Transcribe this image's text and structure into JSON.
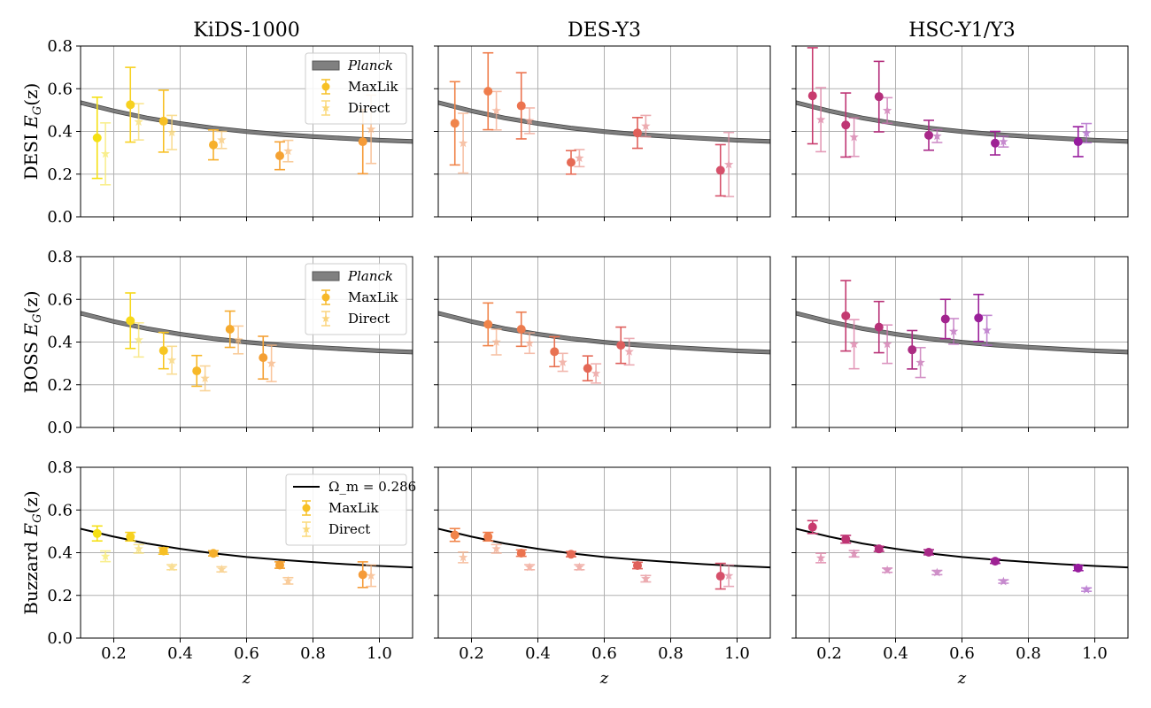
{
  "chart_data": {
    "type": "scatter",
    "layout": "3x3 grid of panels",
    "column_titles": [
      "KiDS-1000",
      "DES-Y3",
      "HSC-Y1/Y3"
    ],
    "row_labels": [
      "DESI E_G(z)",
      "BOSS E_G(z)",
      "Buzzard E_G(z)"
    ],
    "row_label_parts": [
      {
        "prefix": "DESI",
        "sym": "E",
        "sub": "G",
        "suffix": "(z)"
      },
      {
        "prefix": "BOSS",
        "sym": "E",
        "sub": "G",
        "suffix": "(z)"
      },
      {
        "prefix": "Buzzard",
        "sym": "E",
        "sub": "G",
        "suffix": "(z)"
      }
    ],
    "xlabel": "z",
    "xlim": [
      0.1,
      1.1
    ],
    "ylim": [
      0.0,
      0.8
    ],
    "xticks": [
      0.2,
      0.4,
      0.6,
      0.8,
      1.0
    ],
    "xtick_labels": [
      "0.2",
      "0.4",
      "0.6",
      "0.8",
      "1.0"
    ],
    "yticks": [
      0.0,
      0.2,
      0.4,
      0.6,
      0.8
    ],
    "ytick_labels": [
      "0.0",
      "0.2",
      "0.4",
      "0.6",
      "0.8"
    ],
    "grid": true,
    "legends": [
      {
        "row": 0,
        "col": 0,
        "placement": "top-right",
        "entries": [
          {
            "label": "Planck",
            "kind": "band"
          },
          {
            "label": "MaxLik",
            "kind": "circle"
          },
          {
            "label": "Direct",
            "kind": "star"
          }
        ]
      },
      {
        "row": 1,
        "col": 0,
        "placement": "top-right",
        "entries": [
          {
            "label": "Planck",
            "kind": "band"
          },
          {
            "label": "MaxLik",
            "kind": "circle"
          },
          {
            "label": "Direct",
            "kind": "star"
          }
        ]
      },
      {
        "row": 2,
        "col": 0,
        "placement": "top-right",
        "entries": [
          {
            "label": "Ω_m = 0.286",
            "kind": "line"
          },
          {
            "label": "MaxLik",
            "kind": "circle"
          },
          {
            "label": "Direct",
            "kind": "star"
          }
        ]
      }
    ],
    "models": [
      {
        "rows": [
          0,
          1
        ],
        "name": "Planck",
        "kind": "band",
        "color": "#6a6a6a",
        "x": [
          0.1,
          0.2,
          0.3,
          0.4,
          0.5,
          0.6,
          0.7,
          0.8,
          0.9,
          1.0,
          1.1
        ],
        "y": [
          0.535,
          0.496,
          0.463,
          0.437,
          0.416,
          0.399,
          0.386,
          0.376,
          0.367,
          0.359,
          0.353
        ],
        "halfwidth": 0.009
      },
      {
        "rows": [
          2
        ],
        "name": "Ω_m = 0.286",
        "kind": "line",
        "color": "#000000",
        "x": [
          0.1,
          0.2,
          0.3,
          0.4,
          0.5,
          0.6,
          0.7,
          0.8,
          0.9,
          1.0,
          1.1
        ],
        "y": [
          0.512,
          0.475,
          0.443,
          0.418,
          0.397,
          0.38,
          0.367,
          0.356,
          0.346,
          0.338,
          0.331
        ]
      }
    ],
    "panels": [
      {
        "row": 0,
        "col": 0,
        "maxlik": {
          "x": [
            0.15,
            0.25,
            0.35,
            0.5,
            0.7,
            0.95
          ],
          "y": [
            0.37,
            0.525,
            0.448,
            0.337,
            0.286,
            0.352
          ],
          "yerr": [
            0.19,
            0.175,
            0.145,
            0.07,
            0.065,
            0.15
          ],
          "colors": [
            "#f5e014",
            "#f7d11f",
            "#f7c025",
            "#f6b02c",
            "#f5a233",
            "#f59b38"
          ]
        },
        "direct": {
          "x": [
            0.175,
            0.275,
            0.375,
            0.525,
            0.725,
            0.975
          ],
          "y": [
            0.295,
            0.445,
            0.395,
            0.36,
            0.308,
            0.41
          ],
          "yerr": [
            0.145,
            0.085,
            0.08,
            0.04,
            0.05,
            0.16
          ],
          "colors": [
            "#f7ea6a",
            "#f8de6e",
            "#f8d472",
            "#f8c876",
            "#f8bc7a",
            "#f8b47e"
          ]
        }
      },
      {
        "row": 0,
        "col": 1,
        "maxlik": {
          "x": [
            0.15,
            0.25,
            0.35,
            0.5,
            0.7,
            0.95
          ],
          "y": [
            0.438,
            0.588,
            0.52,
            0.255,
            0.393,
            0.218
          ],
          "yerr": [
            0.195,
            0.18,
            0.155,
            0.055,
            0.072,
            0.12
          ],
          "colors": [
            "#f0844a",
            "#ef7d4c",
            "#ec734f",
            "#e66a55",
            "#e0605a",
            "#d6506a"
          ]
        },
        "direct": {
          "x": [
            0.175,
            0.275,
            0.375,
            0.525,
            0.725,
            0.975
          ],
          "y": [
            0.345,
            0.497,
            0.45,
            0.275,
            0.425,
            0.245
          ],
          "yerr": [
            0.14,
            0.09,
            0.06,
            0.04,
            0.05,
            0.15
          ],
          "colors": [
            "#f5b08a",
            "#f3a98c",
            "#f0a08e",
            "#ec9a92",
            "#e69096",
            "#e08aa0"
          ]
        }
      },
      {
        "row": 0,
        "col": 2,
        "maxlik": {
          "x": [
            0.15,
            0.25,
            0.35,
            0.5,
            0.7,
            0.95
          ],
          "y": [
            0.567,
            0.43,
            0.563,
            0.382,
            0.345,
            0.352
          ],
          "yerr": [
            0.225,
            0.15,
            0.165,
            0.07,
            0.055,
            0.07
          ],
          "colors": [
            "#c83b6e",
            "#bf3574",
            "#b42f7c",
            "#a82888",
            "#9e2294",
            "#961b9e"
          ]
        },
        "direct": {
          "x": [
            0.175,
            0.275,
            0.375,
            0.525,
            0.725,
            0.975
          ],
          "y": [
            0.455,
            0.373,
            0.498,
            0.378,
            0.352,
            0.392
          ],
          "yerr": [
            0.15,
            0.09,
            0.06,
            0.03,
            0.025,
            0.045
          ],
          "colors": [
            "#dc7aa0",
            "#d476a6",
            "#ca70ae",
            "#be6ab6",
            "#b464be",
            "#aa5ec6"
          ]
        }
      },
      {
        "row": 1,
        "col": 0,
        "maxlik": {
          "x": [
            0.25,
            0.35,
            0.45,
            0.55,
            0.65
          ],
          "y": [
            0.5,
            0.36,
            0.265,
            0.46,
            0.327
          ],
          "yerr": [
            0.13,
            0.085,
            0.072,
            0.085,
            0.1
          ],
          "colors": [
            "#f7d81a",
            "#f7c622",
            "#f7b828",
            "#f5aa2e",
            "#f4a034"
          ]
        },
        "direct": {
          "x": [
            0.275,
            0.375,
            0.475,
            0.575,
            0.675
          ],
          "y": [
            0.41,
            0.315,
            0.23,
            0.41,
            0.3
          ],
          "yerr": [
            0.08,
            0.065,
            0.058,
            0.065,
            0.085
          ],
          "colors": [
            "#f8e46e",
            "#f8d272",
            "#f8c676",
            "#f8bc7a",
            "#f8b47e"
          ]
        }
      },
      {
        "row": 1,
        "col": 1,
        "maxlik": {
          "x": [
            0.25,
            0.35,
            0.45,
            0.55,
            0.65
          ],
          "y": [
            0.483,
            0.46,
            0.355,
            0.277,
            0.385
          ],
          "yerr": [
            0.1,
            0.08,
            0.07,
            0.058,
            0.085
          ],
          "colors": [
            "#f0844a",
            "#ec7b4e",
            "#e87252",
            "#e46856",
            "#de5e5c"
          ]
        },
        "direct": {
          "x": [
            0.275,
            0.375,
            0.475,
            0.575,
            0.675
          ],
          "y": [
            0.4,
            0.395,
            0.305,
            0.253,
            0.355
          ],
          "yerr": [
            0.06,
            0.048,
            0.042,
            0.045,
            0.062
          ],
          "colors": [
            "#f5b08a",
            "#f2a88e",
            "#ee9f92",
            "#ea9896",
            "#e6909a"
          ]
        }
      },
      {
        "row": 1,
        "col": 2,
        "maxlik": {
          "x": [
            0.25,
            0.35,
            0.45,
            0.55,
            0.65
          ],
          "y": [
            0.523,
            0.47,
            0.364,
            0.508,
            0.513
          ],
          "yerr": [
            0.165,
            0.12,
            0.09,
            0.092,
            0.11
          ],
          "colors": [
            "#c33a70",
            "#b83278",
            "#ac2c82",
            "#a2248e",
            "#9a209a"
          ]
        },
        "direct": {
          "x": [
            0.275,
            0.375,
            0.475,
            0.575,
            0.675
          ],
          "y": [
            0.39,
            0.39,
            0.304,
            0.45,
            0.455
          ],
          "yerr": [
            0.115,
            0.09,
            0.07,
            0.06,
            0.07
          ],
          "colors": [
            "#da78a2",
            "#cf72aa",
            "#c46cb2",
            "#ba66ba",
            "#b062c2"
          ]
        }
      },
      {
        "row": 2,
        "col": 0,
        "maxlik": {
          "x": [
            0.15,
            0.25,
            0.35,
            0.5,
            0.7,
            0.95
          ],
          "y": [
            0.49,
            0.475,
            0.408,
            0.397,
            0.342,
            0.297
          ],
          "yerr": [
            0.035,
            0.02,
            0.015,
            0.012,
            0.015,
            0.06
          ],
          "colors": [
            "#f5e014",
            "#f7d11f",
            "#f7c025",
            "#f6b02c",
            "#f5a233",
            "#f59b38"
          ]
        },
        "direct": {
          "x": [
            0.175,
            0.275,
            0.375,
            0.525,
            0.725,
            0.975
          ],
          "y": [
            0.383,
            0.418,
            0.332,
            0.322,
            0.268,
            0.292
          ],
          "yerr": [
            0.025,
            0.02,
            0.012,
            0.012,
            0.015,
            0.05
          ],
          "colors": [
            "#f7ea6a",
            "#f8de6e",
            "#f8d472",
            "#f8c876",
            "#f8bc7a",
            "#f8b47e"
          ]
        }
      },
      {
        "row": 2,
        "col": 1,
        "maxlik": {
          "x": [
            0.15,
            0.25,
            0.35,
            0.5,
            0.7,
            0.95
          ],
          "y": [
            0.483,
            0.475,
            0.398,
            0.393,
            0.34,
            0.29
          ],
          "yerr": [
            0.03,
            0.02,
            0.015,
            0.012,
            0.015,
            0.06
          ],
          "colors": [
            "#f0844a",
            "#ef7d4c",
            "#ec734f",
            "#e66a55",
            "#e0605a",
            "#d6506a"
          ]
        },
        "direct": {
          "x": [
            0.175,
            0.275,
            0.375,
            0.525,
            0.725,
            0.975
          ],
          "y": [
            0.378,
            0.418,
            0.332,
            0.332,
            0.278,
            0.292
          ],
          "yerr": [
            0.025,
            0.02,
            0.012,
            0.012,
            0.015,
            0.05
          ],
          "colors": [
            "#f5b08a",
            "#f3a98c",
            "#f0a08e",
            "#ec9a92",
            "#e69096",
            "#e08aa0"
          ]
        }
      },
      {
        "row": 2,
        "col": 2,
        "maxlik": {
          "x": [
            0.15,
            0.25,
            0.35,
            0.5,
            0.7,
            0.95
          ],
          "y": [
            0.52,
            0.463,
            0.418,
            0.402,
            0.36,
            0.328
          ],
          "yerr": [
            0.03,
            0.018,
            0.012,
            0.012,
            0.01,
            0.012
          ],
          "colors": [
            "#c83b6e",
            "#bf3574",
            "#b42f7c",
            "#a82888",
            "#9e2294",
            "#961b9e"
          ]
        },
        "direct": {
          "x": [
            0.175,
            0.275,
            0.375,
            0.525,
            0.725,
            0.975
          ],
          "y": [
            0.375,
            0.395,
            0.318,
            0.307,
            0.265,
            0.227
          ],
          "yerr": [
            0.022,
            0.015,
            0.01,
            0.01,
            0.008,
            0.008
          ],
          "colors": [
            "#dc7aa0",
            "#d476a6",
            "#ca70ae",
            "#be6ab6",
            "#b464be",
            "#aa5ec6"
          ]
        }
      }
    ]
  }
}
